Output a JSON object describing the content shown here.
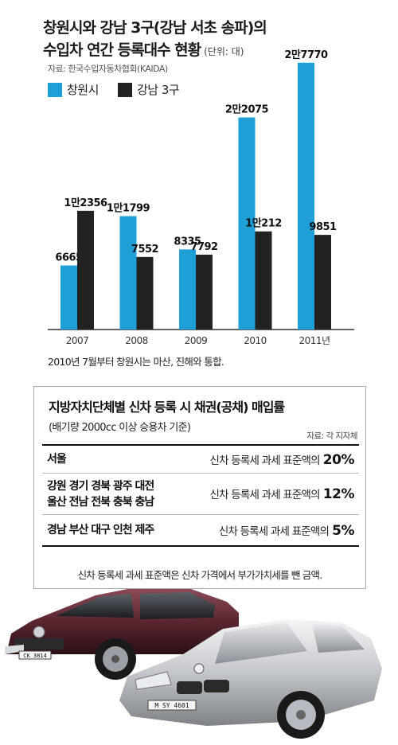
{
  "title_line1": "창원시와 강남 3구(강남 서초 송파)의",
  "title_line2": "수입차 연간 등록대수 현황",
  "unit": "(단위: 대)",
  "source": "자료: 한국수입자동차협회(KAIDA)",
  "note": "2010년 7월부터 창원시는 마산, 진해와 통합.",
  "colors": {
    "changwon": "#1e9fd8",
    "gangnam": "#222222",
    "axis": "#333333"
  },
  "chart_data": {
    "type": "bar",
    "categories": [
      "2007",
      "2008",
      "2009",
      "2010",
      "2011년"
    ],
    "series": [
      {
        "name": "창원시",
        "values": [
          6665,
          11799,
          8335,
          22075,
          27770
        ],
        "labels": [
          "6665",
          "1만1799",
          "8335",
          "2만2075",
          "2만7770"
        ]
      },
      {
        "name": "강남 3구",
        "values": [
          12356,
          7552,
          7792,
          10212,
          9851
        ],
        "labels": [
          "1만2356",
          "7552",
          "7792",
          "1만212",
          "9851"
        ]
      }
    ],
    "ylim": [
      0,
      28000
    ],
    "grid": false,
    "legend": "top-left"
  },
  "rate_box": {
    "title": "지방자치단체별 신차 등록 시 채권(공채) 매입률",
    "subtitle": "(배기량 2000cc 이상 승용차 기준)",
    "source": "자료: 각 지자체",
    "rows": [
      {
        "region": "서울",
        "desc": "신차 등록세 과세 표준액의",
        "rate": "20%"
      },
      {
        "region_line1": "강원 경기 경북 광주 대전",
        "region_line2": "울산 전남 전북 충북 충남",
        "desc": "신차 등록세 과세 표준액의",
        "rate": "12%"
      },
      {
        "region": "경남 부산 대구 인천 제주",
        "desc": "신차 등록세 과세 표준액의",
        "rate": "5%"
      }
    ],
    "note": "신차 등록세 과세 표준액은 신차 가격에서 부가가치세를 뺀 금액."
  },
  "cars": {
    "car1_plate": "CK 3814",
    "car2_plate": "M SY 4601"
  }
}
